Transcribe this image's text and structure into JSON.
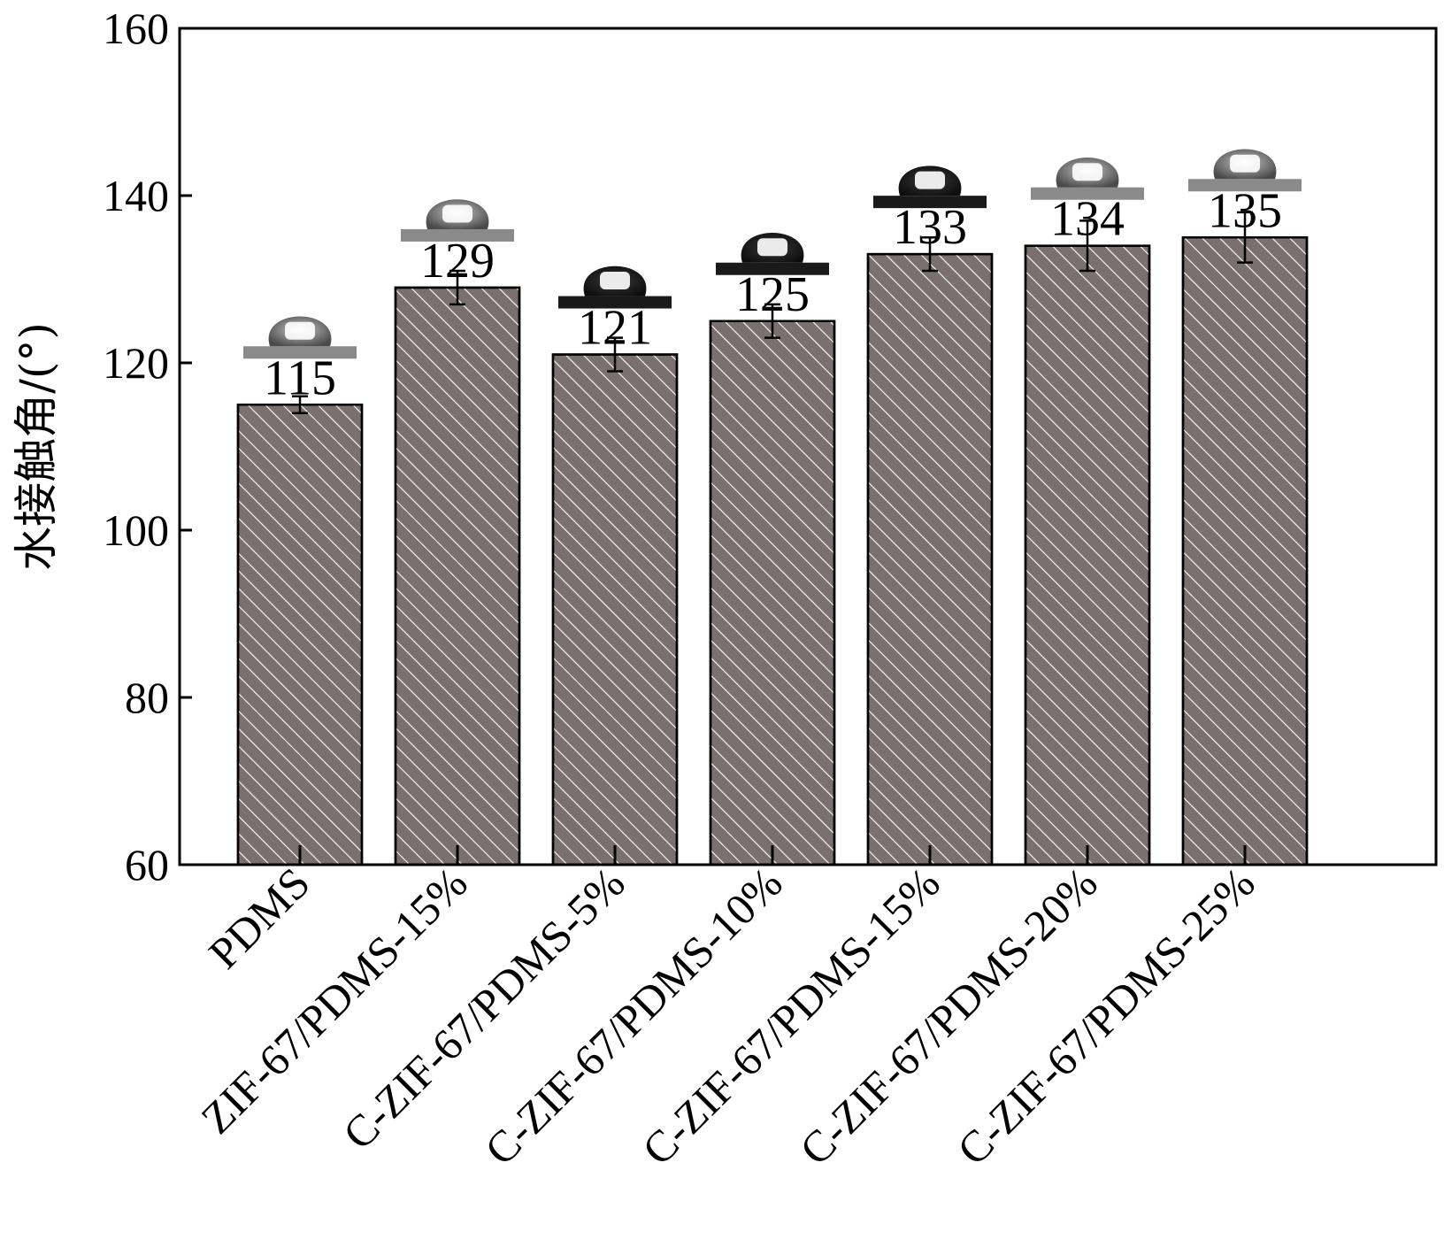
{
  "chart_data": {
    "type": "bar",
    "title": "",
    "xlabel": "",
    "ylabel": "水接触角/(°)",
    "ylim": [
      60,
      160
    ],
    "yticks": [
      60,
      80,
      100,
      120,
      140,
      160
    ],
    "categories": [
      "PDMS",
      "ZIF-67/PDMS-15%",
      "C-ZIF-67/PDMS-5%",
      "C-ZIF-67/PDMS-10%",
      "C-ZIF-67/PDMS-15%",
      "C-ZIF-67/PDMS-20%",
      "C-ZIF-67/PDMS-25%"
    ],
    "values": [
      115,
      129,
      121,
      125,
      133,
      134,
      135
    ],
    "errors": [
      1,
      2,
      2,
      2,
      2,
      3,
      3
    ],
    "data_labels": [
      "115",
      "129",
      "121",
      "125",
      "133",
      "134",
      "135"
    ],
    "droplet_shades": [
      "gray",
      "gray",
      "dark",
      "dark",
      "dark",
      "gray",
      "gray"
    ],
    "bar_fill": "#7a7070",
    "hatch_color": "#ffffff",
    "grid": false,
    "legend": "none"
  }
}
